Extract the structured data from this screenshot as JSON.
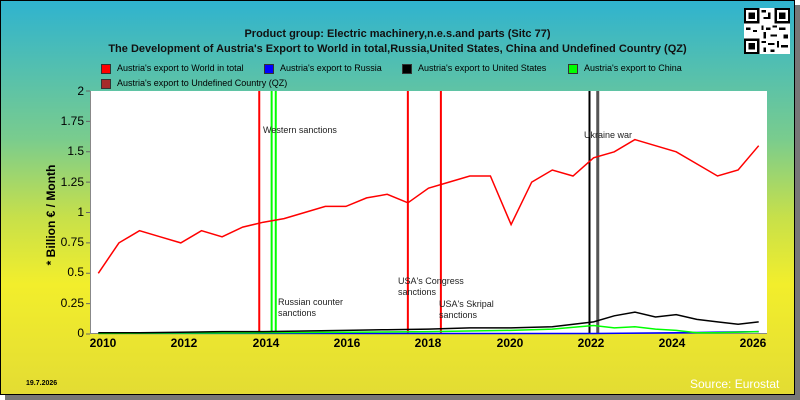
{
  "chart_data": {
    "type": "line",
    "title": "Product group: Electric machinery,n.e.s.and parts (Sitc 77)",
    "subtitle": "The Development of Austria's Export to World in total,Russia,United States, China and Undefined Country (QZ)",
    "ylabel": "* Billion € / Month",
    "xlabel": "",
    "ylim": [
      0,
      2
    ],
    "xlim": [
      2009.8,
      2026.2
    ],
    "y_ticks": [
      "0",
      "0.25",
      "0.5",
      "0.75",
      "1",
      "1.25",
      "1.5",
      "1.75",
      "2"
    ],
    "x_ticks": [
      "2010",
      "2012",
      "2014",
      "2016",
      "2018",
      "2020",
      "2022",
      "2024",
      "2026"
    ],
    "legend": [
      {
        "name": "Austria's export to World in total",
        "color": "#ff0000"
      },
      {
        "name": "Austria's export to Russia",
        "color": "#0000ff"
      },
      {
        "name": "Austria's export to United States",
        "color": "#000000"
      },
      {
        "name": "Austria's export to China",
        "color": "#00ff00"
      },
      {
        "name": "Austria's export to Undefined Country (QZ)",
        "color": "#a52a2a"
      }
    ],
    "event_lines": [
      {
        "label": "Western sanctions",
        "x": 2014.2,
        "color": "#00ff00"
      },
      {
        "label": "Russian counter\nsanctions",
        "x": 2014.3,
        "color": "#00ff00"
      },
      {
        "label": "USA's Congress\nsanctions",
        "x": 2017.5,
        "color": "#ff0000"
      },
      {
        "label": "USA's Skripal\nsanctions",
        "x": 2018.3,
        "color": "#ff0000"
      },
      {
        "label": "Ukraine war",
        "x": 2022.1,
        "color": "#555555"
      },
      {
        "label": "",
        "x": 2013.9,
        "color": "#ff0000"
      },
      {
        "label": "",
        "x": 2021.9,
        "color": "#000000"
      }
    ],
    "series": [
      {
        "name": "Austria's export to World in total",
        "color": "#ff0000",
        "x": [
          2010.0,
          2010.5,
          2011.0,
          2011.5,
          2012.0,
          2012.5,
          2013.0,
          2013.5,
          2014.0,
          2014.5,
          2015.0,
          2015.5,
          2016.0,
          2016.5,
          2017.0,
          2017.5,
          2018.0,
          2018.5,
          2019.0,
          2019.5,
          2020.0,
          2020.5,
          2021.0,
          2021.5,
          2022.0,
          2022.5,
          2023.0,
          2023.5,
          2024.0,
          2024.5,
          2025.0,
          2025.5,
          2026.0
        ],
        "values": [
          0.5,
          0.75,
          0.85,
          0.8,
          0.75,
          0.85,
          0.8,
          0.88,
          0.92,
          0.95,
          1.0,
          1.05,
          1.05,
          1.12,
          1.15,
          1.08,
          1.2,
          1.25,
          1.3,
          1.3,
          0.9,
          1.25,
          1.35,
          1.3,
          1.45,
          1.5,
          1.6,
          1.55,
          1.5,
          1.4,
          1.3,
          1.35,
          1.55
        ]
      },
      {
        "name": "Austria's export to United States",
        "color": "#000000",
        "x": [
          2010.0,
          2011.0,
          2012.0,
          2013.0,
          2014.0,
          2015.0,
          2016.0,
          2017.0,
          2018.0,
          2019.0,
          2020.0,
          2021.0,
          2022.0,
          2022.5,
          2023.0,
          2023.5,
          2024.0,
          2024.5,
          2025.0,
          2025.5,
          2026.0
        ],
        "values": [
          0.01,
          0.01,
          0.015,
          0.02,
          0.02,
          0.025,
          0.03,
          0.035,
          0.04,
          0.05,
          0.05,
          0.06,
          0.1,
          0.15,
          0.18,
          0.14,
          0.16,
          0.12,
          0.1,
          0.08,
          0.1
        ]
      },
      {
        "name": "Austria's export to China",
        "color": "#00ff00",
        "x": [
          2010.0,
          2012.0,
          2014.0,
          2016.0,
          2018.0,
          2020.0,
          2021.0,
          2022.0,
          2022.5,
          2023.0,
          2023.5,
          2024.0,
          2024.5,
          2025.0,
          2026.0
        ],
        "values": [
          0.005,
          0.008,
          0.01,
          0.015,
          0.02,
          0.03,
          0.04,
          0.07,
          0.05,
          0.06,
          0.04,
          0.03,
          0.01,
          0.01,
          0.02
        ]
      },
      {
        "name": "Austria's export to Russia",
        "color": "#0000ff",
        "x": [
          2010.0,
          2014.0,
          2018.0,
          2022.0,
          2024.0,
          2026.0
        ],
        "values": [
          0.005,
          0.005,
          0.004,
          0.004,
          0.01,
          0.02
        ]
      }
    ]
  },
  "footer": {
    "date": "19.7.2026",
    "source": "Source: Eurostat"
  }
}
